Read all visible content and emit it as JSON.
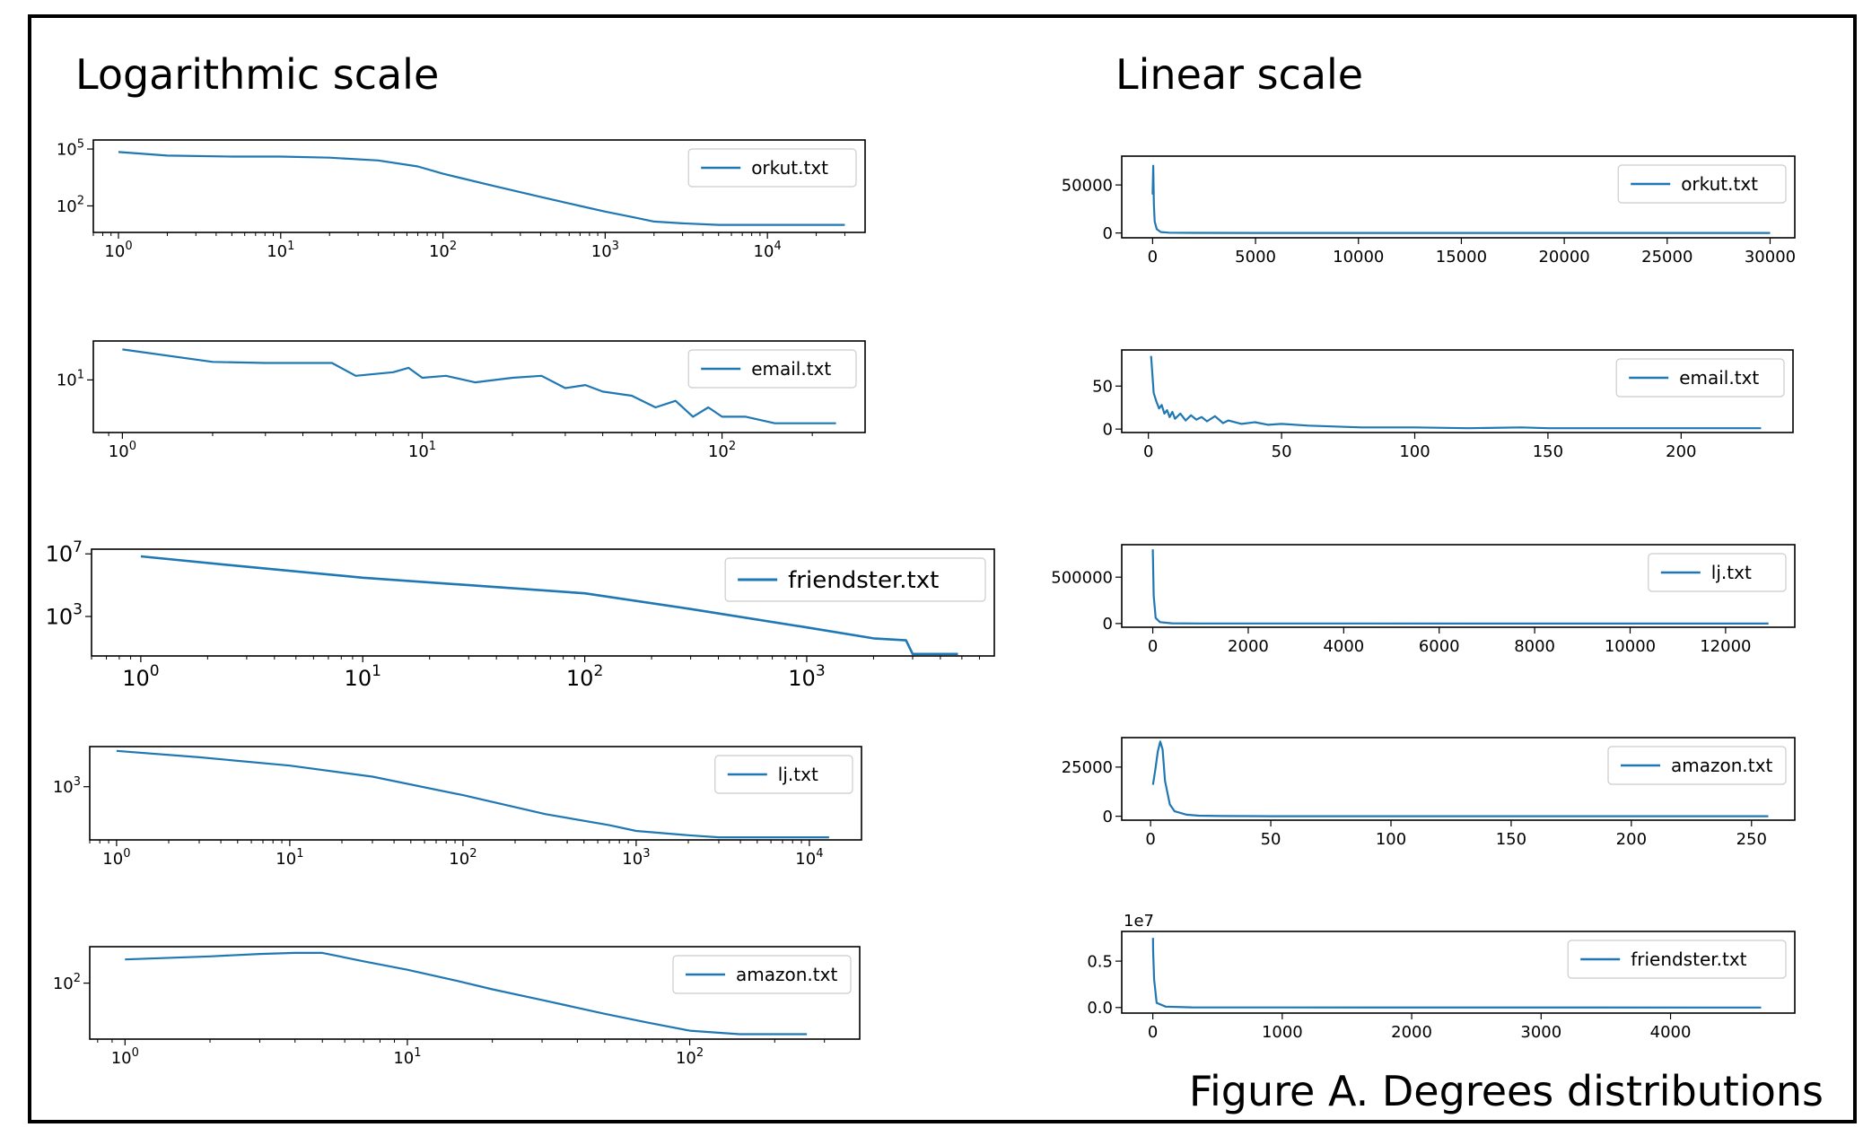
{
  "panels": {
    "left_title": "Logarithmic scale",
    "right_title": "Linear scale"
  },
  "caption": "Figure A.  Degrees distributions",
  "colors": {
    "line": "#1f77b4",
    "frame": "#000000"
  },
  "chart_data": [
    {
      "id": "log-orkut",
      "type": "line",
      "xscale": "log",
      "yscale": "log",
      "xlim": [
        0.7,
        40000
      ],
      "ylim": [
        4,
        300000
      ],
      "legend": "top-right",
      "xticks": [
        1,
        10,
        100,
        1000,
        10000
      ],
      "yticks": [
        100,
        100000
      ],
      "series": [
        {
          "name": "orkut.txt",
          "x": [
            1,
            2,
            5,
            10,
            20,
            40,
            70,
            100,
            200,
            400,
            700,
            1000,
            1500,
            2000,
            3000,
            5000,
            10000,
            30000
          ],
          "y": [
            70000,
            45000,
            40000,
            40000,
            35000,
            25000,
            12000,
            5000,
            1200,
            300,
            100,
            50,
            25,
            15,
            12,
            10,
            10,
            10
          ]
        }
      ]
    },
    {
      "id": "log-email",
      "type": "line",
      "xscale": "log",
      "yscale": "log",
      "xlim": [
        0.8,
        300
      ],
      "ylim": [
        1,
        55
      ],
      "legend": "top-right",
      "xticks": [
        1,
        10,
        100
      ],
      "yticks": [
        10
      ],
      "series": [
        {
          "name": "email.txt",
          "x": [
            1,
            2,
            3,
            5,
            6,
            8,
            9,
            10,
            12,
            15,
            20,
            25,
            30,
            35,
            40,
            50,
            60,
            70,
            80,
            90,
            100,
            120,
            150,
            240
          ],
          "y": [
            38,
            22,
            21,
            21,
            12,
            14,
            17,
            11,
            12,
            9,
            11,
            12,
            7,
            8,
            6,
            5,
            3,
            4,
            2,
            3,
            2,
            2,
            1.5,
            1.5
          ]
        }
      ]
    },
    {
      "id": "log-friendster",
      "type": "line",
      "xscale": "log",
      "yscale": "log",
      "xlim": [
        0.6,
        7000
      ],
      "ylim": [
        3,
        20000000
      ],
      "legend": "top-right",
      "xticks": [
        1,
        10,
        100,
        1000
      ],
      "yticks": [
        1000,
        10000000
      ],
      "series": [
        {
          "name": "friendster.txt",
          "x": [
            1,
            3,
            10,
            30,
            100,
            300,
            1000,
            2000,
            2800,
            3000,
            4800
          ],
          "y": [
            7000000,
            1500000,
            300000,
            100000,
            30000,
            3000,
            200,
            40,
            30,
            4,
            4
          ]
        }
      ]
    },
    {
      "id": "log-lj",
      "type": "line",
      "xscale": "log",
      "yscale": "log",
      "xlim": [
        0.7,
        20000
      ],
      "ylim": [
        3,
        80000
      ],
      "legend": "top-right",
      "xticks": [
        1,
        10,
        100,
        1000,
        10000
      ],
      "yticks": [
        1000
      ],
      "series": [
        {
          "name": "lj.txt",
          "x": [
            1,
            3,
            10,
            30,
            100,
            300,
            700,
            1000,
            2000,
            3000,
            13000
          ],
          "y": [
            50000,
            25000,
            10000,
            3000,
            400,
            50,
            15,
            8,
            5,
            4,
            4
          ]
        }
      ]
    },
    {
      "id": "log-amazon",
      "type": "line",
      "xscale": "log",
      "yscale": "log",
      "xlim": [
        0.75,
        400
      ],
      "ylim": [
        1,
        2000
      ],
      "legend": "top-right",
      "xticks": [
        1,
        10,
        100
      ],
      "yticks": [
        100
      ],
      "series": [
        {
          "name": "amazon.txt",
          "x": [
            1,
            2,
            3,
            4,
            5,
            7,
            10,
            15,
            20,
            30,
            50,
            70,
            100,
            150,
            260
          ],
          "y": [
            700,
            900,
            1100,
            1200,
            1200,
            600,
            300,
            120,
            60,
            25,
            8,
            4,
            2,
            1.5,
            1.5
          ]
        }
      ]
    },
    {
      "id": "lin-orkut",
      "type": "line",
      "xscale": "linear",
      "yscale": "linear",
      "xlim": [
        -1500,
        31200
      ],
      "ylim": [
        -5000,
        80000
      ],
      "legend": "top-right",
      "xticks": [
        0,
        5000,
        10000,
        15000,
        20000,
        25000,
        30000
      ],
      "yticks": [
        0,
        50000
      ],
      "series": [
        {
          "name": "orkut.txt",
          "x": [
            0,
            30,
            60,
            100,
            200,
            400,
            800,
            2000,
            5000,
            30000
          ],
          "y": [
            40000,
            70000,
            30000,
            12000,
            4000,
            1000,
            300,
            100,
            0,
            0
          ]
        }
      ]
    },
    {
      "id": "lin-email",
      "type": "line",
      "xscale": "linear",
      "yscale": "linear",
      "xlim": [
        -10,
        242
      ],
      "ylim": [
        -4,
        92
      ],
      "legend": "top-right",
      "xticks": [
        0,
        50,
        100,
        150,
        200
      ],
      "yticks": [
        0,
        50
      ],
      "series": [
        {
          "name": "email.txt",
          "x": [
            1,
            2,
            3,
            4,
            5,
            6,
            7,
            8,
            9,
            10,
            12,
            14,
            16,
            18,
            20,
            22,
            25,
            28,
            30,
            35,
            40,
            45,
            50,
            60,
            70,
            80,
            90,
            100,
            120,
            140,
            150,
            230
          ],
          "y": [
            85,
            42,
            32,
            24,
            28,
            18,
            22,
            14,
            20,
            12,
            18,
            10,
            16,
            11,
            14,
            9,
            15,
            7,
            10,
            6,
            8,
            5,
            6,
            4,
            3,
            2,
            2,
            2,
            1,
            2,
            1,
            1
          ]
        }
      ]
    },
    {
      "id": "lin-lj",
      "type": "line",
      "xscale": "linear",
      "yscale": "linear",
      "xlim": [
        -650,
        13450
      ],
      "ylim": [
        -40000,
        850000
      ],
      "legend": "top-right",
      "xticks": [
        0,
        2000,
        4000,
        6000,
        8000,
        10000,
        12000
      ],
      "yticks": [
        0,
        500000
      ],
      "series": [
        {
          "name": "lj.txt",
          "x": [
            1,
            5,
            20,
            60,
            150,
            400,
            1000,
            12900
          ],
          "y": [
            800000,
            700000,
            300000,
            60000,
            15000,
            3000,
            500,
            0
          ]
        }
      ]
    },
    {
      "id": "lin-amazon",
      "type": "line",
      "xscale": "linear",
      "yscale": "linear",
      "xlim": [
        -12,
        268
      ],
      "ylim": [
        -2000,
        40000
      ],
      "legend": "top-right",
      "xticks": [
        0,
        50,
        100,
        150,
        200,
        250
      ],
      "yticks": [
        0,
        25000
      ],
      "series": [
        {
          "name": "amazon.txt",
          "x": [
            1,
            2,
            3,
            4,
            5,
            6,
            8,
            10,
            15,
            20,
            30,
            50,
            100,
            200,
            257
          ],
          "y": [
            16000,
            24000,
            33000,
            38000,
            34000,
            18000,
            6000,
            2500,
            800,
            300,
            100,
            20,
            0,
            0,
            0
          ]
        }
      ]
    },
    {
      "id": "lin-friendster",
      "type": "line",
      "xscale": "linear",
      "yscale": "linear",
      "xlim": [
        -240,
        4960
      ],
      "ylim": [
        -0.06,
        0.82
      ],
      "legend": "top-right",
      "xticks": [
        0,
        1000,
        2000,
        3000,
        4000
      ],
      "yticks": [
        0,
        0.5
      ],
      "ytick_labels": [
        "0.0",
        "0.5"
      ],
      "yoffset_label": "1e7",
      "series": [
        {
          "name": "friendster.txt",
          "x": [
            1,
            3,
            10,
            30,
            100,
            300,
            1000,
            4700
          ],
          "y": [
            0.75,
            0.6,
            0.3,
            0.05,
            0.01,
            0.002,
            0.0005,
            0
          ]
        }
      ]
    }
  ]
}
